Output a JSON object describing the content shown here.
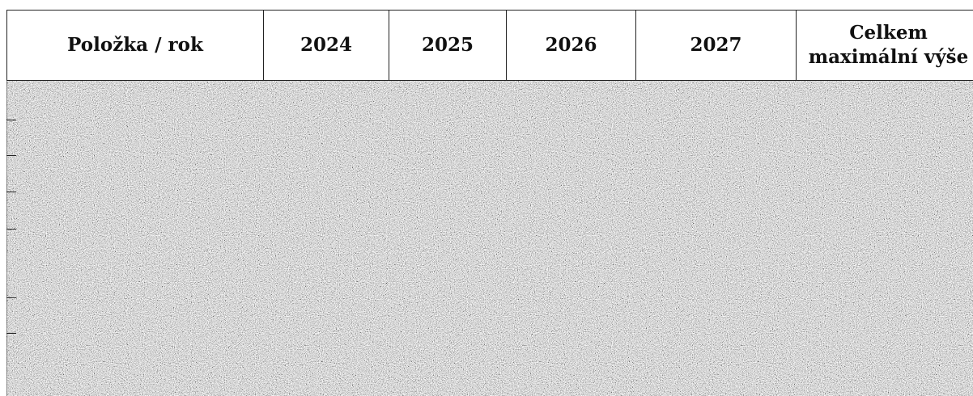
{
  "table": {
    "header": [
      "Položka / rok",
      "2024",
      "2025",
      "2026",
      "2027",
      "Celkem maximální výše"
    ]
  }
}
